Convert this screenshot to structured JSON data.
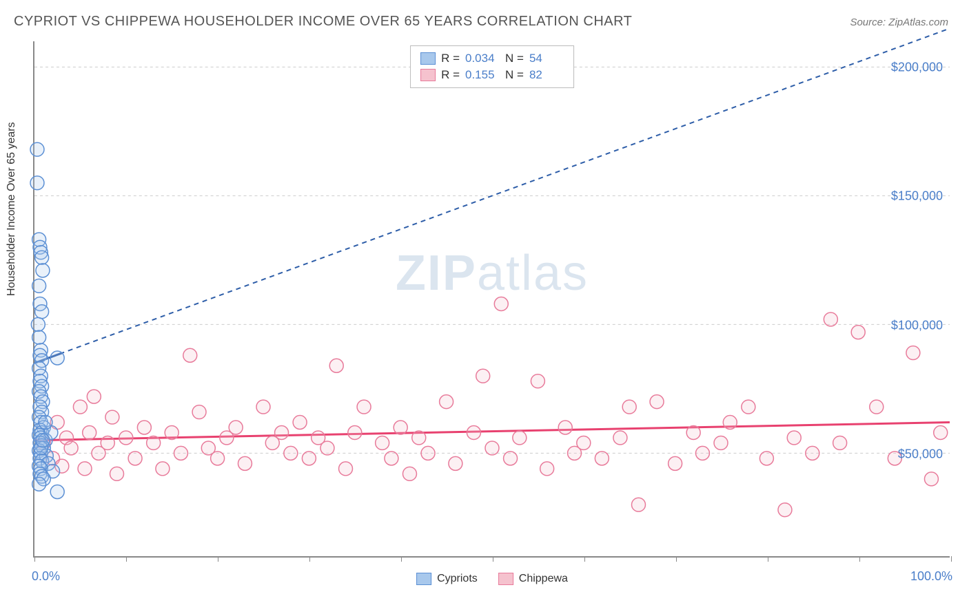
{
  "title": "CYPRIOT VS CHIPPEWA HOUSEHOLDER INCOME OVER 65 YEARS CORRELATION CHART",
  "source": "Source: ZipAtlas.com",
  "ylabel": "Householder Income Over 65 years",
  "watermark_zip": "ZIP",
  "watermark_atlas": "atlas",
  "chart": {
    "type": "scatter",
    "xlim": [
      0,
      100
    ],
    "ylim": [
      10000,
      210000
    ],
    "background_color": "#ffffff",
    "grid_color": "#cccccc",
    "yticks": [
      50000,
      100000,
      150000,
      200000
    ],
    "ytick_labels": [
      "$50,000",
      "$100,000",
      "$150,000",
      "$200,000"
    ],
    "xticks": [
      0,
      10,
      20,
      30,
      40,
      50,
      60,
      70,
      80,
      90,
      100
    ],
    "xaxis_left_label": "0.0%",
    "xaxis_right_label": "100.0%",
    "label_color": "#4a7ec9",
    "marker_radius": 10,
    "marker_stroke_width": 1.5,
    "marker_fill_opacity": 0.25
  },
  "series": {
    "cypriots": {
      "label": "Cypriots",
      "color_fill": "#a8c8ec",
      "color_stroke": "#5b8fd4",
      "R": "0.034",
      "N": "54",
      "trend": {
        "x1": 0,
        "y1": 85000,
        "x2": 100,
        "y2": 215000,
        "color": "#2d5da8",
        "dash": "7,6",
        "width": 2
      },
      "trend_solid": {
        "x1": 0,
        "y1": 85000,
        "x2": 3,
        "y2": 88900,
        "color": "#2d5da8",
        "width": 3
      },
      "points": [
        [
          0.3,
          168000
        ],
        [
          0.3,
          155000
        ],
        [
          0.5,
          133000
        ],
        [
          0.6,
          130000
        ],
        [
          0.7,
          128000
        ],
        [
          0.8,
          126000
        ],
        [
          0.9,
          121000
        ],
        [
          0.5,
          115000
        ],
        [
          0.6,
          108000
        ],
        [
          0.8,
          105000
        ],
        [
          0.4,
          100000
        ],
        [
          0.5,
          95000
        ],
        [
          0.7,
          90000
        ],
        [
          0.6,
          88000
        ],
        [
          0.8,
          86000
        ],
        [
          2.5,
          87000
        ],
        [
          0.5,
          83000
        ],
        [
          0.7,
          80000
        ],
        [
          0.6,
          78000
        ],
        [
          0.8,
          76000
        ],
        [
          0.5,
          74000
        ],
        [
          0.7,
          72000
        ],
        [
          0.9,
          70000
        ],
        [
          0.6,
          68000
        ],
        [
          0.8,
          66000
        ],
        [
          0.5,
          64000
        ],
        [
          0.7,
          62000
        ],
        [
          1.0,
          60000
        ],
        [
          0.6,
          59000
        ],
        [
          0.8,
          58000
        ],
        [
          0.5,
          57000
        ],
        [
          0.7,
          56000
        ],
        [
          1.2,
          55000
        ],
        [
          0.6,
          54000
        ],
        [
          0.8,
          53000
        ],
        [
          1.0,
          52000
        ],
        [
          0.5,
          51000
        ],
        [
          0.7,
          50000
        ],
        [
          1.3,
          49000
        ],
        [
          0.6,
          48000
        ],
        [
          0.8,
          47000
        ],
        [
          1.5,
          46000
        ],
        [
          0.5,
          45000
        ],
        [
          0.7,
          44000
        ],
        [
          2.0,
          43000
        ],
        [
          0.6,
          42000
        ],
        [
          0.8,
          41000
        ],
        [
          1.0,
          40000
        ],
        [
          0.5,
          38000
        ],
        [
          2.5,
          35000
        ],
        [
          0.7,
          52000
        ],
        [
          1.8,
          58000
        ],
        [
          1.2,
          62000
        ],
        [
          0.9,
          55000
        ]
      ]
    },
    "chippewa": {
      "label": "Chippewa",
      "color_fill": "#f5c2ce",
      "color_stroke": "#e87a9a",
      "R": "0.155",
      "N": "82",
      "trend": {
        "x1": 0,
        "y1": 55000,
        "x2": 100,
        "y2": 62000,
        "color": "#e8416f",
        "dash": "none",
        "width": 3
      },
      "points": [
        [
          1,
          54000
        ],
        [
          2,
          48000
        ],
        [
          2.5,
          62000
        ],
        [
          3,
          45000
        ],
        [
          3.5,
          56000
        ],
        [
          4,
          52000
        ],
        [
          5,
          68000
        ],
        [
          5.5,
          44000
        ],
        [
          6,
          58000
        ],
        [
          6.5,
          72000
        ],
        [
          7,
          50000
        ],
        [
          8,
          54000
        ],
        [
          8.5,
          64000
        ],
        [
          9,
          42000
        ],
        [
          10,
          56000
        ],
        [
          11,
          48000
        ],
        [
          12,
          60000
        ],
        [
          13,
          54000
        ],
        [
          14,
          44000
        ],
        [
          15,
          58000
        ],
        [
          16,
          50000
        ],
        [
          17,
          88000
        ],
        [
          18,
          66000
        ],
        [
          19,
          52000
        ],
        [
          20,
          48000
        ],
        [
          21,
          56000
        ],
        [
          22,
          60000
        ],
        [
          23,
          46000
        ],
        [
          25,
          68000
        ],
        [
          26,
          54000
        ],
        [
          27,
          58000
        ],
        [
          28,
          50000
        ],
        [
          29,
          62000
        ],
        [
          30,
          48000
        ],
        [
          31,
          56000
        ],
        [
          32,
          52000
        ],
        [
          33,
          84000
        ],
        [
          34,
          44000
        ],
        [
          35,
          58000
        ],
        [
          36,
          68000
        ],
        [
          38,
          54000
        ],
        [
          39,
          48000
        ],
        [
          40,
          60000
        ],
        [
          41,
          42000
        ],
        [
          42,
          56000
        ],
        [
          43,
          50000
        ],
        [
          45,
          70000
        ],
        [
          46,
          46000
        ],
        [
          48,
          58000
        ],
        [
          49,
          80000
        ],
        [
          50,
          52000
        ],
        [
          51,
          108000
        ],
        [
          52,
          48000
        ],
        [
          53,
          56000
        ],
        [
          55,
          78000
        ],
        [
          56,
          44000
        ],
        [
          58,
          60000
        ],
        [
          59,
          50000
        ],
        [
          60,
          54000
        ],
        [
          62,
          48000
        ],
        [
          64,
          56000
        ],
        [
          65,
          68000
        ],
        [
          66,
          30000
        ],
        [
          68,
          70000
        ],
        [
          70,
          46000
        ],
        [
          72,
          58000
        ],
        [
          73,
          50000
        ],
        [
          75,
          54000
        ],
        [
          76,
          62000
        ],
        [
          78,
          68000
        ],
        [
          80,
          48000
        ],
        [
          82,
          28000
        ],
        [
          83,
          56000
        ],
        [
          85,
          50000
        ],
        [
          87,
          102000
        ],
        [
          88,
          54000
        ],
        [
          90,
          97000
        ],
        [
          92,
          68000
        ],
        [
          94,
          48000
        ],
        [
          96,
          89000
        ],
        [
          98,
          40000
        ],
        [
          99,
          58000
        ]
      ]
    }
  },
  "legend_stats_label_R": "R =",
  "legend_stats_label_N": "N ="
}
